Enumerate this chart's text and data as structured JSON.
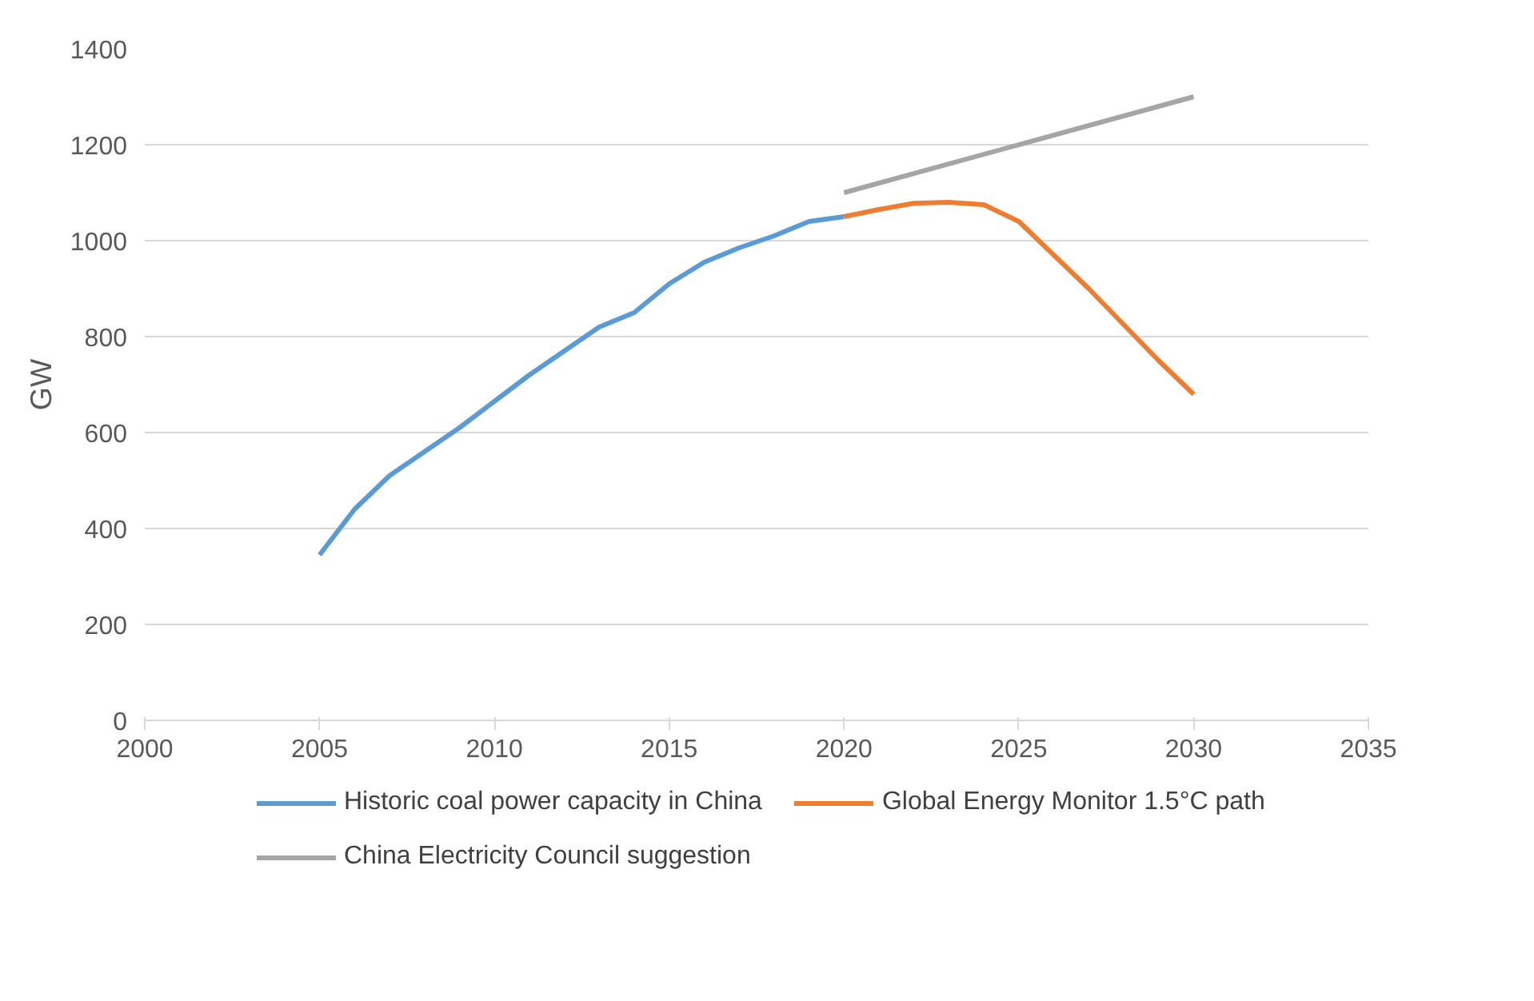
{
  "chart_data": {
    "type": "line",
    "ylabel": "GW",
    "xlim": [
      2000,
      2035
    ],
    "xticks": [
      2000,
      2005,
      2010,
      2015,
      2020,
      2025,
      2030,
      2035
    ],
    "ylim": [
      0,
      1400
    ],
    "yticks": [
      0,
      200,
      400,
      600,
      800,
      1000,
      1200,
      1400
    ],
    "grid": "y",
    "legend": "bottom",
    "marker": "none",
    "line_style": "solid",
    "series": [
      {
        "name": "Historic coal power capacity in China",
        "color": "#5b9bd5",
        "x": [
          2005,
          2006,
          2007,
          2008,
          2009,
          2010,
          2011,
          2012,
          2013,
          2014,
          2015,
          2016,
          2017,
          2018,
          2019,
          2020
        ],
        "values": [
          345,
          440,
          510,
          560,
          610,
          665,
          720,
          770,
          820,
          850,
          910,
          955,
          985,
          1010,
          1040,
          1050
        ]
      },
      {
        "name": "Global Energy Monitor 1.5°C path",
        "color": "#ed7d31",
        "x": [
          2020,
          2021,
          2022,
          2023,
          2024,
          2025,
          2026,
          2027,
          2028,
          2029,
          2030
        ],
        "values": [
          1050,
          1065,
          1078,
          1080,
          1075,
          1040,
          970,
          900,
          825,
          750,
          680
        ]
      },
      {
        "name": "China Electricity Council suggestion",
        "color": "#a5a5a5",
        "x": [
          2020,
          2030
        ],
        "values": [
          1100,
          1300
        ]
      }
    ]
  }
}
